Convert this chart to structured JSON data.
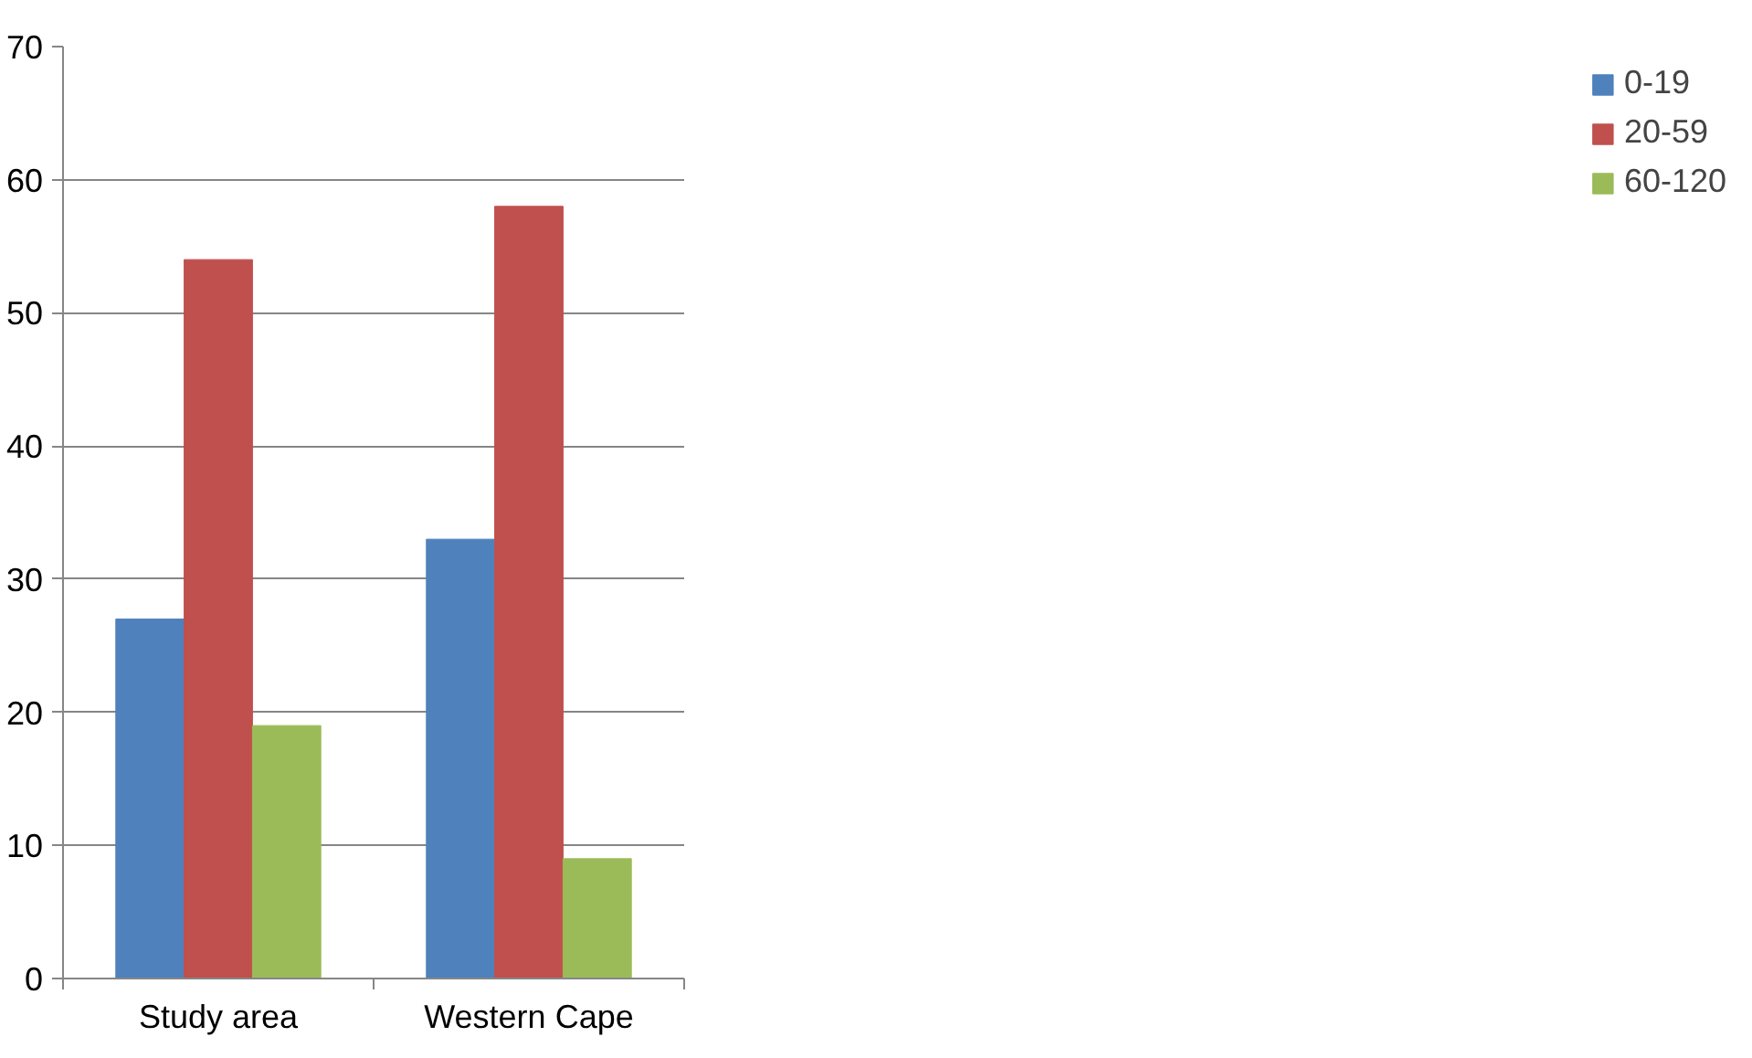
{
  "chart_data": {
    "type": "bar",
    "categories": [
      "Study area",
      "Western Cape"
    ],
    "series": [
      {
        "name": "0-19",
        "color": "#4f81bd",
        "values": [
          27,
          33
        ]
      },
      {
        "name": "20-59",
        "color": "#c0504d",
        "values": [
          54,
          58
        ]
      },
      {
        "name": "60-120",
        "color": "#9bbb59",
        "values": [
          19,
          9
        ]
      }
    ],
    "ylim": [
      0,
      70
    ],
    "yticks": [
      0,
      10,
      20,
      30,
      40,
      50,
      60,
      70
    ],
    "grid": "y",
    "legend": "right"
  }
}
